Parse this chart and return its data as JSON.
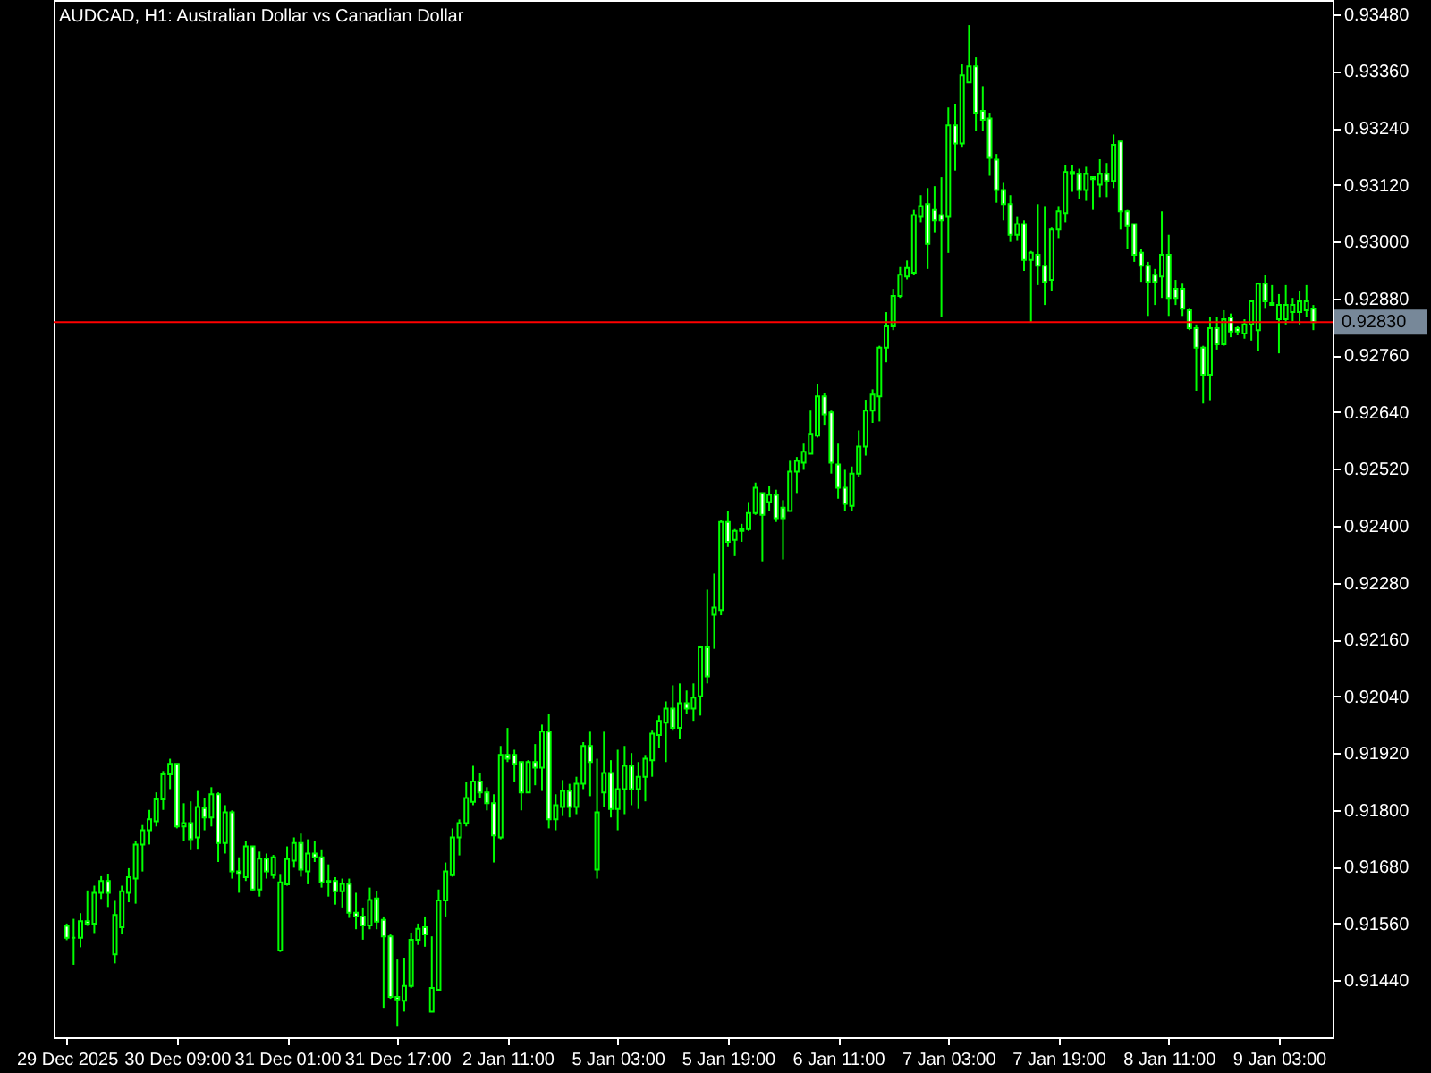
{
  "chart_data": {
    "type": "candlestick",
    "title": "AUDCAD, H1:  Australian Dollar vs Canadian Dollar",
    "color": "#00ff00",
    "categories": [
      "29 Dec 2025",
      null,
      null,
      null,
      null,
      null,
      null,
      null,
      null,
      null,
      null,
      null,
      null,
      null,
      null,
      null,
      "30 Dec 09:00",
      null,
      null,
      null,
      null,
      null,
      null,
      null,
      null,
      null,
      null,
      null,
      null,
      null,
      null,
      null,
      "31 Dec 01:00",
      null,
      null,
      null,
      null,
      null,
      null,
      null,
      null,
      null,
      null,
      null,
      null,
      null,
      null,
      null,
      "31 Dec 17:00",
      null,
      null,
      null,
      null,
      null,
      null,
      null,
      null,
      null,
      null,
      null,
      null,
      null,
      null,
      null,
      "2 Jan 11:00",
      null,
      null,
      null,
      null,
      null,
      null,
      null,
      null,
      null,
      null,
      null,
      null,
      null,
      null,
      null,
      "5 Jan 03:00",
      null,
      null,
      null,
      null,
      null,
      null,
      null,
      null,
      null,
      null,
      null,
      null,
      null,
      null,
      null,
      "5 Jan 19:00",
      null,
      null,
      null,
      null,
      null,
      null,
      null,
      null,
      null,
      null,
      null,
      null,
      null,
      null,
      null,
      "6 Jan 11:00",
      null,
      null,
      null,
      null,
      null,
      null,
      null,
      null,
      null,
      null,
      null,
      null,
      null,
      null,
      null,
      "7 Jan 03:00",
      null,
      null,
      null,
      null,
      null,
      null,
      null,
      null,
      null,
      null,
      null,
      null,
      null,
      null,
      null,
      "7 Jan 19:00",
      null,
      null,
      null,
      null,
      null,
      null,
      null,
      null,
      null,
      null,
      null,
      null,
      null,
      null,
      null,
      "8 Jan 11:00",
      null,
      null,
      null,
      null,
      null,
      null,
      null,
      null,
      null,
      null,
      null,
      null,
      null,
      null,
      null,
      "9 Jan 03:00",
      null,
      null,
      null,
      null,
      null
    ],
    "ohlc": [
      [
        0.91555,
        0.9156,
        0.91525,
        0.9153
      ],
      [
        0.9153,
        0.9157,
        0.91473,
        0.9153
      ],
      [
        0.9153,
        0.91582,
        0.9151,
        0.91565
      ],
      [
        0.91565,
        0.9163,
        0.91555,
        0.9156
      ],
      [
        0.9156,
        0.9164,
        0.9154,
        0.91625
      ],
      [
        0.91625,
        0.9166,
        0.91612,
        0.9165
      ],
      [
        0.9165,
        0.91665,
        0.91595,
        0.91625
      ],
      [
        0.91495,
        0.91608,
        0.91476,
        0.91578
      ],
      [
        0.91552,
        0.9164,
        0.91537,
        0.91628
      ],
      [
        0.91625,
        0.91677,
        0.91605,
        0.91658
      ],
      [
        0.91655,
        0.91735,
        0.91602,
        0.91727
      ],
      [
        0.91727,
        0.91768,
        0.9167,
        0.91757
      ],
      [
        0.91757,
        0.918,
        0.91727,
        0.9178
      ],
      [
        0.91776,
        0.91837,
        0.91765,
        0.91822
      ],
      [
        0.91822,
        0.91882,
        0.918,
        0.91875
      ],
      [
        0.91875,
        0.91908,
        0.91844,
        0.91897
      ],
      [
        0.91897,
        0.91897,
        0.91761,
        0.91765
      ],
      [
        0.91765,
        0.91814,
        0.91735,
        0.91772
      ],
      [
        0.91772,
        0.91818,
        0.91715,
        0.91738
      ],
      [
        0.91742,
        0.9184,
        0.91716,
        0.91806
      ],
      [
        0.91804,
        0.91826,
        0.91757,
        0.91784
      ],
      [
        0.91784,
        0.91848,
        0.91765,
        0.91833
      ],
      [
        0.91833,
        0.91837,
        0.9169,
        0.9173
      ],
      [
        0.9173,
        0.9181,
        0.91708,
        0.91795
      ],
      [
        0.91795,
        0.91799,
        0.91655,
        0.9167
      ],
      [
        0.9167,
        0.917,
        0.91625,
        0.91665
      ],
      [
        0.91658,
        0.91735,
        0.9165,
        0.91723
      ],
      [
        0.91723,
        0.91723,
        0.9163,
        0.91632
      ],
      [
        0.91632,
        0.91712,
        0.91617,
        0.91697
      ],
      [
        0.91697,
        0.91708,
        0.91655,
        0.9167
      ],
      [
        0.91662,
        0.91705,
        0.91655,
        0.917
      ],
      [
        0.91503,
        0.91663,
        0.915,
        0.91647
      ],
      [
        0.91643,
        0.91723,
        0.9164,
        0.91696
      ],
      [
        0.91693,
        0.91742,
        0.91678,
        0.9173
      ],
      [
        0.9173,
        0.9175,
        0.91659,
        0.91674
      ],
      [
        0.9167,
        0.91738,
        0.91643,
        0.91708
      ],
      [
        0.91708,
        0.91734,
        0.9169,
        0.917
      ],
      [
        0.917,
        0.91715,
        0.91636,
        0.91647
      ],
      [
        0.9165,
        0.91685,
        0.91617,
        0.91647
      ],
      [
        0.9165,
        0.91658,
        0.916,
        0.91628
      ],
      [
        0.91628,
        0.91655,
        0.91594,
        0.91644
      ],
      [
        0.91644,
        0.91655,
        0.91572,
        0.91583
      ],
      [
        0.91583,
        0.91625,
        0.91548,
        0.91575
      ],
      [
        0.91575,
        0.91594,
        0.91526,
        0.91556
      ],
      [
        0.91556,
        0.91636,
        0.91548,
        0.9161
      ],
      [
        0.91613,
        0.91628,
        0.91548,
        0.91564
      ],
      [
        0.91568,
        0.91575,
        0.91382,
        0.91533
      ],
      [
        0.91533,
        0.91537,
        0.91401,
        0.91405
      ],
      [
        0.91405,
        0.91484,
        0.91344,
        0.914
      ],
      [
        0.91397,
        0.91488,
        0.91374,
        0.91428
      ],
      [
        0.91428,
        0.91541,
        0.91424,
        0.91526
      ],
      [
        0.91526,
        0.9156,
        0.91515,
        0.91549
      ],
      [
        0.91552,
        0.91575,
        0.91511,
        0.91537
      ],
      [
        0.91374,
        0.91533,
        0.91374,
        0.91424
      ],
      [
        0.9142,
        0.91632,
        0.9142,
        0.91609
      ],
      [
        0.91609,
        0.91689,
        0.91575,
        0.9167
      ],
      [
        0.91662,
        0.91761,
        0.91659,
        0.91742
      ],
      [
        0.91742,
        0.9178,
        0.91704,
        0.91772
      ],
      [
        0.91772,
        0.9186,
        0.91765,
        0.91825
      ],
      [
        0.91817,
        0.91893,
        0.9181,
        0.9186
      ],
      [
        0.9186,
        0.91878,
        0.91825,
        0.91837
      ],
      [
        0.91837,
        0.91848,
        0.91799,
        0.91814
      ],
      [
        0.91814,
        0.91833,
        0.91689,
        0.91746
      ],
      [
        0.91742,
        0.91935,
        0.91738,
        0.91916
      ],
      [
        0.91916,
        0.91973,
        0.91901,
        0.91908
      ],
      [
        0.91916,
        0.91927,
        0.91859,
        0.91897
      ],
      [
        0.91901,
        0.91901,
        0.91799,
        0.91837
      ],
      [
        0.91837,
        0.91905,
        0.91837,
        0.91901
      ],
      [
        0.91901,
        0.91939,
        0.91852,
        0.91889
      ],
      [
        0.91889,
        0.9198,
        0.9184,
        0.91965
      ],
      [
        0.91965,
        0.92003,
        0.91761,
        0.9178
      ],
      [
        0.9178,
        0.91833,
        0.91757,
        0.9181
      ],
      [
        0.91806,
        0.91863,
        0.91787,
        0.9184
      ],
      [
        0.9184,
        0.91855,
        0.91784,
        0.91806
      ],
      [
        0.91806,
        0.9187,
        0.91791,
        0.91855
      ],
      [
        0.91855,
        0.91943,
        0.91844,
        0.91935
      ],
      [
        0.91935,
        0.91965,
        0.91829,
        0.91901
      ],
      [
        0.91674,
        0.91908,
        0.91655,
        0.91795
      ],
      [
        0.91837,
        0.91965,
        0.91806,
        0.91878
      ],
      [
        0.91878,
        0.91905,
        0.91784,
        0.91802
      ],
      [
        0.91802,
        0.91927,
        0.91757,
        0.91844
      ],
      [
        0.91844,
        0.91935,
        0.91791,
        0.91893
      ],
      [
        0.91893,
        0.9192,
        0.9181,
        0.91844
      ],
      [
        0.91844,
        0.91901,
        0.91802,
        0.9187
      ],
      [
        0.9187,
        0.91916,
        0.91818,
        0.91908
      ],
      [
        0.91905,
        0.91969,
        0.9187,
        0.91961
      ],
      [
        0.91958,
        0.91999,
        0.91931,
        0.91988
      ],
      [
        0.91984,
        0.92029,
        0.91901,
        0.92014
      ],
      [
        0.92014,
        0.92063,
        0.91969,
        0.91973
      ],
      [
        0.91973,
        0.92067,
        0.9195,
        0.92025
      ],
      [
        0.92025,
        0.92052,
        0.92003,
        0.92014
      ],
      [
        0.92014,
        0.92067,
        0.91988,
        0.92037
      ],
      [
        0.9204,
        0.92147,
        0.91999,
        0.92143
      ],
      [
        0.92143,
        0.92265,
        0.92067,
        0.92082
      ],
      [
        0.92212,
        0.92299,
        0.9214,
        0.92227
      ],
      [
        0.92222,
        0.92412,
        0.92211,
        0.92408
      ],
      [
        0.92408,
        0.92431,
        0.92355,
        0.92366
      ],
      [
        0.9237,
        0.92393,
        0.92336,
        0.92389
      ],
      [
        0.92393,
        0.92404,
        0.92366,
        0.92389
      ],
      [
        0.92393,
        0.9245,
        0.92389,
        0.92427
      ],
      [
        0.92427,
        0.92491,
        0.92423,
        0.9248
      ],
      [
        0.92469,
        0.92469,
        0.92325,
        0.92423
      ],
      [
        0.9245,
        0.92484,
        0.92431,
        0.92465
      ],
      [
        0.92465,
        0.92476,
        0.92408,
        0.92416
      ],
      [
        0.92438,
        0.92454,
        0.92329,
        0.92416
      ],
      [
        0.92431,
        0.92537,
        0.92431,
        0.92514
      ],
      [
        0.92514,
        0.92545,
        0.92469,
        0.92537
      ],
      [
        0.92533,
        0.92575,
        0.92518,
        0.92556
      ],
      [
        0.92552,
        0.92643,
        0.92552,
        0.92594
      ],
      [
        0.9259,
        0.927,
        0.92586,
        0.92673
      ],
      [
        0.92673,
        0.92681,
        0.92613,
        0.92635
      ],
      [
        0.92639,
        0.92643,
        0.9251,
        0.92533
      ],
      [
        0.92529,
        0.92575,
        0.92457,
        0.9248
      ],
      [
        0.9248,
        0.92518,
        0.92431,
        0.92446
      ],
      [
        0.92442,
        0.92525,
        0.92431,
        0.9251
      ],
      [
        0.9251,
        0.92601,
        0.92503,
        0.92567
      ],
      [
        0.92567,
        0.92666,
        0.92548,
        0.92643
      ],
      [
        0.92643,
        0.92688,
        0.92617,
        0.92677
      ],
      [
        0.92673,
        0.9278,
        0.9262,
        0.92776
      ],
      [
        0.92776,
        0.92851,
        0.92745,
        0.92821
      ],
      [
        0.92821,
        0.929,
        0.92813,
        0.92885
      ],
      [
        0.92885,
        0.92946,
        0.92881,
        0.9293
      ],
      [
        0.92926,
        0.9296,
        0.9292,
        0.92944
      ],
      [
        0.92934,
        0.93067,
        0.9293,
        0.93056
      ],
      [
        0.93052,
        0.93098,
        0.93041,
        0.93075
      ],
      [
        0.93079,
        0.93113,
        0.92942,
        0.92995
      ],
      [
        0.93067,
        0.93117,
        0.93018,
        0.93045
      ],
      [
        0.93056,
        0.93136,
        0.9284,
        0.93045
      ],
      [
        0.93052,
        0.93283,
        0.92976,
        0.93245
      ],
      [
        0.93245,
        0.93291,
        0.9315,
        0.93207
      ],
      [
        0.93207,
        0.93374,
        0.932,
        0.93351
      ],
      [
        0.93336,
        0.93457,
        0.93336,
        0.9337
      ],
      [
        0.9337,
        0.93389,
        0.93234,
        0.93272
      ],
      [
        0.93276,
        0.93328,
        0.93234,
        0.93257
      ],
      [
        0.9326,
        0.93272,
        0.93139,
        0.93177
      ],
      [
        0.93173,
        0.93185,
        0.93082,
        0.93109
      ],
      [
        0.93109,
        0.93124,
        0.93045,
        0.93079
      ],
      [
        0.93079,
        0.93098,
        0.92999,
        0.93014
      ],
      [
        0.93014,
        0.93052,
        0.93003,
        0.93037
      ],
      [
        0.93037,
        0.93045,
        0.92938,
        0.92961
      ],
      [
        0.92961,
        0.9298,
        0.92829,
        0.92976
      ],
      [
        0.92972,
        0.93079,
        0.92908,
        0.92949
      ],
      [
        0.92949,
        0.93075,
        0.92866,
        0.92915
      ],
      [
        0.92919,
        0.9303,
        0.92896,
        0.93026
      ],
      [
        0.93026,
        0.93075,
        0.93007,
        0.93064
      ],
      [
        0.9306,
        0.93162,
        0.93041,
        0.93147
      ],
      [
        0.93147,
        0.93162,
        0.93105,
        0.93143
      ],
      [
        0.93143,
        0.93154,
        0.9309,
        0.93109
      ],
      [
        0.93109,
        0.93158,
        0.93086,
        0.93143
      ],
      [
        0.93136,
        0.93136,
        0.93067,
        0.93132
      ],
      [
        0.9312,
        0.93174,
        0.93094,
        0.93143
      ],
      [
        0.93143,
        0.93166,
        0.93094,
        0.93128
      ],
      [
        0.93128,
        0.93226,
        0.93113,
        0.93204
      ],
      [
        0.93211,
        0.93211,
        0.93026,
        0.93064
      ],
      [
        0.93064,
        0.93067,
        0.92984,
        0.93033
      ],
      [
        0.93037,
        0.93037,
        0.92957,
        0.92972
      ],
      [
        0.92976,
        0.92984,
        0.92915,
        0.92949
      ],
      [
        0.92949,
        0.92957,
        0.92843,
        0.92915
      ],
      [
        0.9293,
        0.92942,
        0.92866,
        0.92915
      ],
      [
        0.92926,
        0.93064,
        0.92881,
        0.92972
      ],
      [
        0.92972,
        0.93014,
        0.92843,
        0.92881
      ],
      [
        0.929,
        0.92919,
        0.92866,
        0.92881
      ],
      [
        0.929,
        0.92911,
        0.92843,
        0.92858
      ],
      [
        0.92855,
        0.92858,
        0.92813,
        0.92817
      ],
      [
        0.92817,
        0.92825,
        0.92685,
        0.92776
      ],
      [
        0.92776,
        0.9278,
        0.92658,
        0.92719
      ],
      [
        0.92719,
        0.9284,
        0.92665,
        0.92817
      ],
      [
        0.92817,
        0.9284,
        0.92772,
        0.92783
      ],
      [
        0.92783,
        0.92855,
        0.9278,
        0.92836
      ],
      [
        0.9284,
        0.92848,
        0.92798,
        0.9281
      ],
      [
        0.92817,
        0.92821,
        0.92802,
        0.9281
      ],
      [
        0.92806,
        0.92836,
        0.92795,
        0.92825
      ],
      [
        0.92825,
        0.92877,
        0.92791,
        0.92874
      ],
      [
        0.92813,
        0.92911,
        0.92768,
        0.92911
      ],
      [
        0.92911,
        0.9293,
        0.92858,
        0.92874
      ],
      [
        0.9287,
        0.92908,
        0.92866,
        0.92866
      ],
      [
        0.92836,
        0.92889,
        0.92764,
        0.92866
      ],
      [
        0.92836,
        0.92908,
        0.92825,
        0.92866
      ],
      [
        0.92851,
        0.92881,
        0.92832,
        0.92866
      ],
      [
        0.92851,
        0.92896,
        0.92825,
        0.92874
      ],
      [
        0.92855,
        0.92908,
        0.9284,
        0.92874
      ],
      [
        0.92858,
        0.92866,
        0.92813,
        0.9283
      ]
    ],
    "ylim": [
      0.9132,
      0.9351
    ],
    "yticks": [
      {
        "value": 0.9348,
        "label": "0.93480"
      },
      {
        "value": 0.9336,
        "label": "0.93360"
      },
      {
        "value": 0.9324,
        "label": "0.93240"
      },
      {
        "value": 0.9312,
        "label": "0.93120"
      },
      {
        "value": 0.93,
        "label": "0.93000"
      },
      {
        "value": 0.9288,
        "label": "0.92880"
      },
      {
        "value": 0.9276,
        "label": "0.92760"
      },
      {
        "value": 0.9264,
        "label": "0.92640"
      },
      {
        "value": 0.9252,
        "label": "0.92520"
      },
      {
        "value": 0.924,
        "label": "0.92400"
      },
      {
        "value": 0.9228,
        "label": "0.92280"
      },
      {
        "value": 0.9216,
        "label": "0.92160"
      },
      {
        "value": 0.9204,
        "label": "0.92040"
      },
      {
        "value": 0.9192,
        "label": "0.91920"
      },
      {
        "value": 0.918,
        "label": "0.91800"
      },
      {
        "value": 0.9168,
        "label": "0.91680"
      },
      {
        "value": 0.9156,
        "label": "0.91560"
      },
      {
        "value": 0.9144,
        "label": "0.91440"
      }
    ],
    "ref_lines": [
      {
        "axis": "y",
        "value": 0.9283,
        "label": "0.92830",
        "color": "#ff0000",
        "line_style": "solid"
      }
    ]
  }
}
